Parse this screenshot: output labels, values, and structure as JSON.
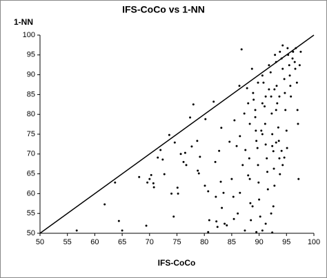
{
  "chart_data": {
    "type": "scatter",
    "title": "IFS-CoCo vs 1-NN",
    "x_label": "IFS-CoCo",
    "y_label": "1-NN",
    "xlim": [
      50,
      100
    ],
    "ylim": [
      50,
      100
    ],
    "xticks": [
      50,
      55,
      60,
      65,
      70,
      75,
      80,
      85,
      90,
      95,
      100
    ],
    "yticks": [
      50,
      55,
      60,
      65,
      70,
      75,
      80,
      85,
      90,
      95,
      100
    ],
    "grid": false,
    "reference_line": {
      "x": [
        50,
        100
      ],
      "y": [
        50,
        100
      ],
      "color": "#000000"
    },
    "series": [
      {
        "color": "#000000",
        "x": [
          56.7,
          61.8,
          63.7,
          64.4,
          65,
          68.1,
          69.4,
          69.6,
          70.3,
          70.7,
          70.8,
          70,
          71.5,
          72,
          72.4,
          72.7,
          73.6,
          74,
          74.4,
          74.6,
          75.1,
          75.2,
          75.7,
          76.2,
          76.5,
          76.7,
          77.4,
          77.7,
          78,
          78.7,
          79.2,
          78.8,
          79,
          80.2,
          80.1,
          80.7,
          80.9,
          80.7,
          81.7,
          82,
          82.1,
          82.2,
          82.4,
          82.7,
          83,
          83.2,
          83.5,
          83.7,
          84.1,
          83.1,
          84.6,
          85,
          85.3,
          85.4,
          85.5,
          85.9,
          86.5,
          86.8,
          86.4,
          86.1,
          86.5,
          87,
          87.3,
          87.5,
          87.8,
          88,
          88.3,
          88.2,
          88.3,
          88.4,
          88.5,
          88.7,
          88.9,
          89,
          89.3,
          89.4,
          89.5,
          89.7,
          89.8,
          89.9,
          90,
          90.2,
          89.5,
          90.6,
          90.8,
          91,
          91.1,
          91.2,
          91.4,
          91.5,
          91.6,
          91.8,
          92.1,
          92.2,
          92.3,
          92.4,
          92.6,
          92.7,
          92.8,
          92.9,
          93.1,
          93.2,
          93.3,
          93.5,
          93.6,
          93.7,
          93.8,
          94.1,
          94.3,
          94.6,
          94.7,
          94.8,
          95,
          95.1,
          95.2,
          95.3,
          95.5,
          95.6,
          95.7,
          95.8,
          96.1,
          96.2,
          96.5,
          96.6,
          96.7,
          96.9,
          97,
          97.1,
          97.2,
          97.4,
          97.6,
          92.6,
          92.2,
          92.4,
          91.2,
          87.4,
          90.6,
          88.8,
          88,
          90.4,
          93.8,
          94.3,
          94.1,
          94.6,
          93.1,
          92.4,
          89.3,
          91.2,
          91.8,
          89.8,
          90.6,
          92.8,
          93.1,
          93.7,
          94.3,
          90.6
        ],
        "values": [
          50.7,
          57.3,
          62.8,
          53.1,
          50.7,
          64.2,
          51.9,
          62.8,
          64.7,
          62.6,
          61.6,
          63.7,
          69.1,
          71,
          68.6,
          64.9,
          74.8,
          60,
          54.2,
          72.9,
          61.5,
          60,
          70,
          68,
          70.3,
          67.2,
          79.2,
          71.9,
          82.5,
          73.3,
          69.3,
          65.8,
          65.1,
          78.8,
          62,
          60.6,
          53.3,
          50.3,
          83.2,
          68,
          59.2,
          53,
          51.6,
          70.8,
          63,
          56.4,
          60.2,
          52.4,
          52,
          76.6,
          73.1,
          63.7,
          59.2,
          53.6,
          78.5,
          72,
          74.5,
          96.4,
          87.2,
          55,
          60.2,
          67.2,
          80.2,
          71,
          86.6,
          82.8,
          77.6,
          68.9,
          63.7,
          57.6,
          53.3,
          91.5,
          85.4,
          83.7,
          79.3,
          75.9,
          73.3,
          71.5,
          67.2,
          62.8,
          58.5,
          54.2,
          50.3,
          89.8,
          88,
          82,
          77.6,
          72.4,
          68.9,
          65.5,
          61.1,
          92.4,
          90.6,
          84.5,
          80.2,
          75,
          70.7,
          66.3,
          62,
          95,
          93.2,
          87.2,
          82.8,
          76.7,
          73.3,
          68.9,
          95.8,
          94.1,
          91.5,
          88.9,
          85.4,
          81.1,
          75.9,
          71.5,
          96.7,
          95,
          92.4,
          89.8,
          87.2,
          84.5,
          94.1,
          95.8,
          93.2,
          91.5,
          96.7,
          88,
          81.1,
          77.6,
          63.7,
          92.4,
          95.8,
          56.8,
          55,
          50.2,
          52.4,
          50.7,
          50.7,
          56.8,
          64.6,
          75.9,
          64.9,
          67.2,
          70.8,
          69.1,
          72.9,
          72,
          81.1,
          84.5,
          86.3,
          88,
          82.8,
          86.3,
          81.1,
          84.5,
          97.4,
          75
        ]
      }
    ]
  }
}
